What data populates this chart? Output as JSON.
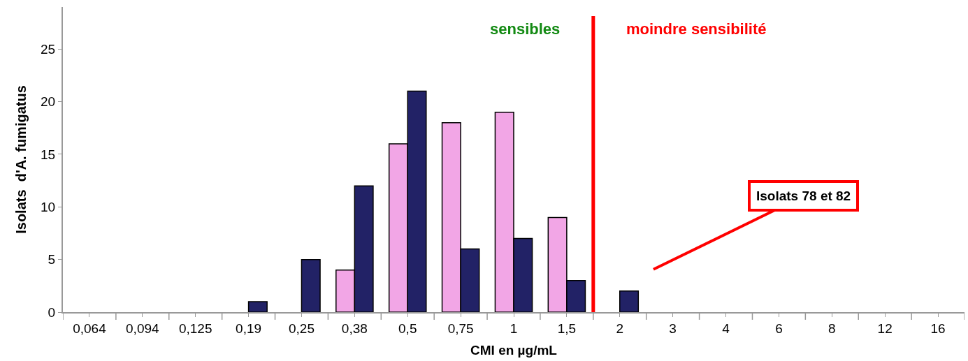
{
  "chart_data": {
    "type": "bar",
    "xlabel": "CMI en µg/mL",
    "ylabel": "Isolats  d'A. fumigatus",
    "categories": [
      "0,064",
      "0,094",
      "0,125",
      "0,19",
      "0,25",
      "0,38",
      "0,5",
      "0,75",
      "1",
      "1,5",
      "2",
      "3",
      "4",
      "6",
      "8",
      "12",
      "16"
    ],
    "series": [
      {
        "color": "#f2a6e6",
        "values": [
          null,
          null,
          null,
          null,
          null,
          4,
          16,
          18,
          19,
          9,
          null,
          null,
          null,
          null,
          null,
          null,
          null
        ]
      },
      {
        "color": "#222266",
        "values": [
          null,
          null,
          null,
          1,
          5,
          12,
          21,
          6,
          7,
          3,
          2,
          null,
          null,
          null,
          null,
          null,
          null
        ]
      }
    ],
    "ylim": [
      0,
      29
    ],
    "yticks": [
      0,
      5,
      10,
      15,
      20,
      25
    ],
    "ref_lines": [
      {
        "axis": "x",
        "value": "2",
        "color": "#ff0000"
      }
    ],
    "annotations": [
      "sensibles",
      "moindre sensibilité",
      "Isolats 78 et 82"
    ]
  }
}
